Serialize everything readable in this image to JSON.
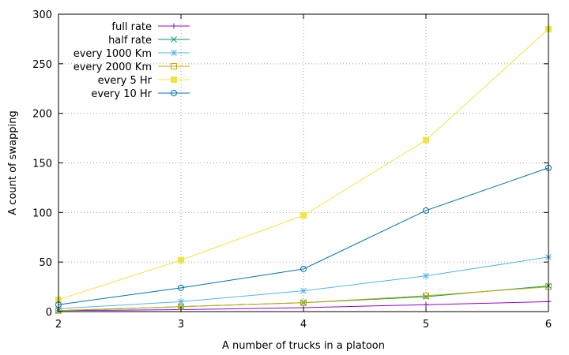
{
  "chart_data": {
    "type": "line",
    "title": "",
    "xlabel": "A number of trucks in a platoon",
    "ylabel": "A count of swapping",
    "xlim": [
      2,
      6
    ],
    "ylim": [
      0,
      300
    ],
    "xticks": [
      2,
      3,
      4,
      5,
      6
    ],
    "yticks": [
      0,
      50,
      100,
      150,
      200,
      250,
      300
    ],
    "grid": true,
    "legend": "top-left",
    "x": [
      2,
      3,
      4,
      5,
      6
    ],
    "series": [
      {
        "name": "full rate",
        "values": [
          1,
          2,
          4,
          7,
          10
        ],
        "color": "#9400d3",
        "marker": "plus"
      },
      {
        "name": "half rate",
        "values": [
          1,
          5,
          9,
          15,
          26
        ],
        "color": "#009e73",
        "marker": "cross"
      },
      {
        "name": "every 1000 Km",
        "values": [
          3,
          10,
          21,
          36,
          55
        ],
        "color": "#56b4e9",
        "marker": "star"
      },
      {
        "name": "every 2000 Km",
        "values": [
          1,
          5,
          9,
          16,
          25
        ],
        "color": "#c8a800",
        "marker": "open-square"
      },
      {
        "name": "every 5 Hr",
        "values": [
          12,
          52,
          97,
          173,
          285
        ],
        "color": "#f0e442",
        "marker": "filled-square"
      },
      {
        "name": "every 10 Hr",
        "values": [
          7,
          24,
          43,
          102,
          145
        ],
        "color": "#0072b2",
        "marker": "open-circle"
      }
    ]
  }
}
